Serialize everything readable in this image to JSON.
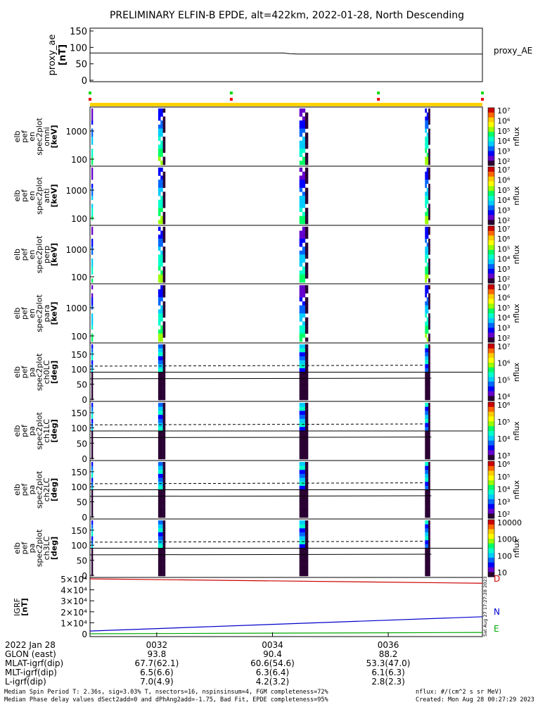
{
  "chart_data": {
    "type": "heatmap",
    "title": "PRELIMINARY ELFIN-B EPDE, alt=422km, 2022-01-28, North Descending",
    "proxy_ae": {
      "ylabel_lines": [
        "proxy_ae",
        "[nT]"
      ],
      "legend": "proxy_AE",
      "yticks": [
        "150",
        "100",
        "50",
        "0"
      ],
      "ylim": [
        0,
        150
      ],
      "x_frac": [
        0.0,
        0.495,
        0.5,
        0.51,
        0.53,
        1.0
      ],
      "values": [
        83,
        83,
        82,
        81,
        80,
        80
      ]
    },
    "status_bar": {
      "green_frac": [
        0.0,
        0.36,
        0.735,
        1.0
      ],
      "red_frac": [
        0.0,
        0.36,
        0.735,
        1.0
      ]
    },
    "energy_panels": [
      {
        "ylabel_lines": [
          "elb",
          "pef",
          "en",
          "spec2plot",
          "omni",
          "[keV]"
        ],
        "yticks": [
          "1000",
          "100"
        ],
        "cbar_label": "nflux",
        "cbar_ticks": [
          "10⁷",
          "10⁶",
          "10⁵",
          "10⁴",
          "10³",
          "10²"
        ]
      },
      {
        "ylabel_lines": [
          "elb",
          "pef",
          "en",
          "spec2plot",
          "anti",
          "[keV]"
        ],
        "yticks": [
          "1000",
          "100"
        ],
        "cbar_label": "nflux",
        "cbar_ticks": [
          "10⁷",
          "10⁶",
          "10⁵",
          "10⁴",
          "10³",
          "10²"
        ]
      },
      {
        "ylabel_lines": [
          "elb",
          "pef",
          "en",
          "spec2plot",
          "perp",
          "[keV]"
        ],
        "yticks": [
          "1000",
          "100"
        ],
        "cbar_label": "nflux",
        "cbar_ticks": [
          "10⁷",
          "10⁶",
          "10⁵",
          "10⁴",
          "10³",
          "10²"
        ]
      },
      {
        "ylabel_lines": [
          "elb",
          "pef",
          "en",
          "spec2plot",
          "para",
          "[keV]"
        ],
        "yticks": [
          "1000",
          "100"
        ],
        "cbar_label": "nflux",
        "cbar_ticks": [
          "10⁷",
          "10⁶",
          "10⁵",
          "10⁴",
          "10³",
          "10²"
        ]
      }
    ],
    "pa_panels": [
      {
        "ylabel_lines": [
          "elb",
          "pef",
          "pa",
          "spec2plot",
          "ch0LC",
          "[deg]"
        ],
        "yticks": [
          "150",
          "100",
          "50",
          "0"
        ],
        "cbar_label": "nflux",
        "cbar_ticks": [
          "10⁷",
          "10⁶",
          "10⁵",
          "10⁴"
        ]
      },
      {
        "ylabel_lines": [
          "elb",
          "pef",
          "pa",
          "spec2plot",
          "ch1LC",
          "[deg]"
        ],
        "yticks": [
          "150",
          "100",
          "50",
          "0"
        ],
        "cbar_label": "nflux",
        "cbar_ticks": [
          "10⁶",
          "10⁵",
          "10⁴",
          "10³"
        ]
      },
      {
        "ylabel_lines": [
          "elb",
          "pef",
          "pa",
          "spec2plot",
          "ch2LC",
          "[deg]"
        ],
        "yticks": [
          "150",
          "100",
          "50",
          "0"
        ],
        "cbar_label": "nflux",
        "cbar_ticks": [
          "10⁶",
          "10⁵",
          "10⁴",
          "10³",
          "10²"
        ]
      },
      {
        "ylabel_lines": [
          "elb",
          "pef",
          "pa",
          "spec2plot",
          "ch3LC",
          "[deg]"
        ],
        "yticks": [
          "150",
          "100",
          "50",
          "0"
        ],
        "cbar_label": "nflux",
        "cbar_ticks": [
          "10000",
          "1000",
          "100",
          "10"
        ]
      }
    ],
    "igrf": {
      "ylabel_lines": [
        "IGRF",
        "[nT]"
      ],
      "yticks": [
        "5×10⁴",
        "4×10⁴",
        "3×10⁴",
        "2×10⁴",
        "1×10⁴",
        "0"
      ],
      "ylim": [
        0,
        50000
      ],
      "components": [
        {
          "name": "D",
          "color": "#cc0000",
          "values_start": 50000,
          "values_end": 46000
        },
        {
          "name": "N",
          "color": "#0000cc",
          "values_start": 2500,
          "values_end": 15500
        },
        {
          "name": "E",
          "color": "#00aa00",
          "values_start": 0,
          "values_end": 1200
        }
      ],
      "side_stamp": "Sat Aug 27 17:27:28 2023"
    },
    "x_axis": {
      "ticks": [
        "0032",
        "0034",
        "0036"
      ],
      "rows": [
        {
          "label": "2022 Jan 28",
          "values": [
            "0032",
            "0034",
            "0036"
          ]
        },
        {
          "label": "GLON (east)",
          "values": [
            "93.8",
            "90.4",
            "88.2"
          ]
        },
        {
          "label": "MLAT-igrf(dip)",
          "values": [
            "67.7(62.1)",
            "60.6(54.6)",
            "53.3(47.0)"
          ]
        },
        {
          "label": "MLT-igrf(dip)",
          "values": [
            "6.5(6.6)",
            "6.3(6.4)",
            "6.1(6.3)"
          ]
        },
        {
          "label": "L-igrf(dip)",
          "values": [
            "7.0(4.9)",
            "4.2(3.2)",
            "2.8(2.3)"
          ]
        }
      ]
    },
    "colors": {
      "colorbar": [
        "#ffffff",
        "#cc0000",
        "#ff6600",
        "#ffcc00",
        "#ffff00",
        "#99ff00",
        "#00ff66",
        "#00ffcc",
        "#00ccff",
        "#0066ff",
        "#0000ff",
        "#6600cc",
        "#2a0033"
      ]
    }
  },
  "footer": {
    "left_line1": "Median Spin Period T: 2.36s, sig=3.03% T, nsectors=16, nspinsinsum=4, FGM completeness=72%",
    "left_line2": "Median Phase delay values dSect2add=0 and dPhAng2add=-1.75, Bad Fit, EPDE completeness=95%",
    "right_line1": "nflux: #/(cm^2 s sr MeV)",
    "right_line2": "Created: Mon Aug 28 00:27:29 2023"
  }
}
